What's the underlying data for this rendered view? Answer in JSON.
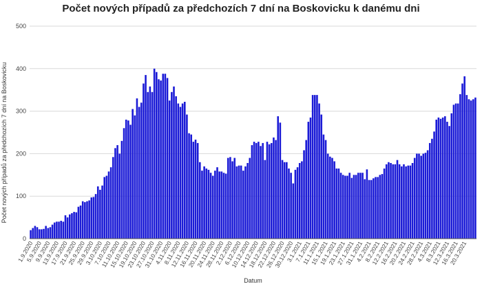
{
  "chart_data": {
    "type": "bar",
    "title": "Počet nových případů za předchozích 7 dní na Boskovicku k danému dni",
    "xlabel": "Datum",
    "ylabel": "Počet nových případů za předchozích 7 dní na Boskovicku",
    "ylim": [
      0,
      500
    ],
    "yticks": [
      0,
      100,
      200,
      300,
      400,
      500
    ],
    "grid": true,
    "bar_color": "#1a1ad6",
    "start_date": "2020-09-01",
    "xtick_labels": [
      "1.9.2020",
      "5.9.2020",
      "9.9.2020",
      "13.9.2020",
      "17.9.2020",
      "21.9.2020",
      "25.9.2020",
      "29.9.2020",
      "3.10.2020",
      "7.10.2020",
      "11.10.2020",
      "15.10.2020",
      "19.10.2020",
      "23.10.2020",
      "27.10.2020",
      "31.10.2020",
      "4.11.2020",
      "8.11.2020",
      "12.11.2020",
      "16.11.2020",
      "20.11.2020",
      "24.11.2020",
      "28.11.2020",
      "2.12.2020",
      "6.12.2020",
      "10.12.2020",
      "14.12.2020",
      "18.12.2020",
      "22.12.2020",
      "26.12.2020",
      "30.12.2020",
      "3.1.2021",
      "7.1.2021",
      "11.1.2021",
      "15.1.2021",
      "19.1.2021",
      "23.1.2021",
      "27.1.2021",
      "31.1.2021",
      "4.2.2021",
      "8.2.2021",
      "12.2.2021",
      "16.2.2021",
      "20.2.2021",
      "24.2.2021",
      "28.2.2021",
      "4.3.2021",
      "8.3.2021",
      "12.3.2021",
      "16.3.2021",
      "20.3.2021"
    ],
    "values": [
      20,
      25,
      30,
      27,
      22,
      22,
      23,
      30,
      25,
      27,
      33,
      38,
      40,
      40,
      42,
      40,
      55,
      50,
      57,
      60,
      63,
      62,
      75,
      78,
      88,
      86,
      88,
      90,
      97,
      98,
      105,
      123,
      115,
      125,
      145,
      148,
      158,
      168,
      192,
      213,
      220,
      200,
      230,
      260,
      280,
      278,
      268,
      305,
      290,
      330,
      310,
      320,
      365,
      385,
      345,
      358,
      345,
      400,
      392,
      375,
      372,
      388,
      388,
      378,
      325,
      345,
      358,
      335,
      318,
      310,
      318,
      322,
      292,
      248,
      245,
      228,
      233,
      225,
      180,
      160,
      170,
      165,
      162,
      155,
      148,
      160,
      168,
      158,
      158,
      155,
      153,
      190,
      192,
      182,
      190,
      170,
      172,
      172,
      160,
      170,
      178,
      190,
      220,
      228,
      225,
      228,
      218,
      225,
      185,
      228,
      222,
      225,
      238,
      232,
      288,
      273,
      185,
      180,
      180,
      165,
      155,
      130,
      162,
      168,
      178,
      182,
      208,
      232,
      275,
      285,
      338,
      338,
      338,
      318,
      292,
      245,
      232,
      200,
      193,
      190,
      182,
      165,
      165,
      155,
      150,
      148,
      148,
      155,
      143,
      150,
      150,
      155,
      155,
      155,
      140,
      163,
      138,
      138,
      142,
      145,
      145,
      150,
      152,
      165,
      175,
      180,
      178,
      175,
      175,
      185,
      175,
      170,
      175,
      170,
      172,
      172,
      178,
      190,
      200,
      200,
      195,
      200,
      202,
      208,
      225,
      235,
      252,
      280,
      285,
      282,
      285,
      288,
      275,
      265,
      295,
      315,
      318,
      318,
      340,
      365,
      382,
      338,
      328,
      325,
      328,
      332
    ]
  }
}
